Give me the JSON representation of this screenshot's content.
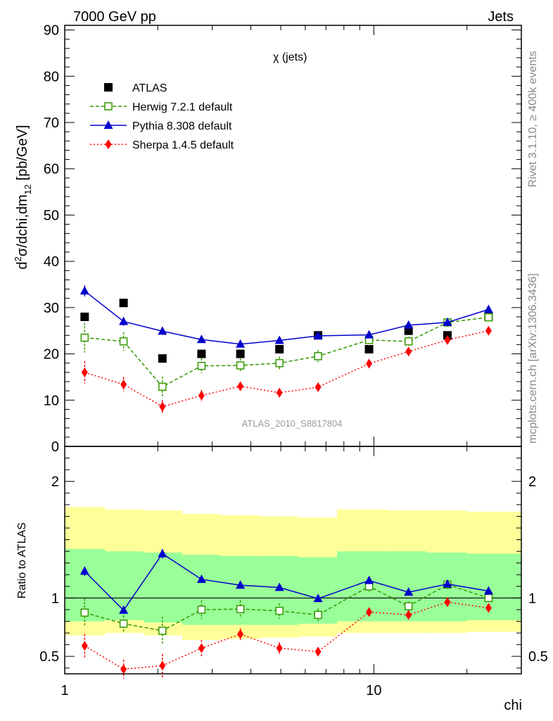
{
  "header": {
    "left_title": "7000 GeV pp",
    "right_title": "Jets"
  },
  "side_labels": {
    "rivet": "Rivet 3.1.10, ≥ 400k events",
    "mcplots": "mcplots.cern.ch [arXiv:1306.3436]"
  },
  "chart_data": [
    {
      "type": "scatter",
      "panel": "main",
      "title": "χ (jets)",
      "watermark": "ATLAS_2010_S8817804",
      "ylabel_main": "d",
      "ylabel_sup": "2",
      "ylabel_rest": "σ/dchi,dm",
      "ylabel_sub": "12",
      "ylabel_unit": " [pb/GeV]",
      "xscale": "log",
      "xlim": [
        1,
        30
      ],
      "ylim": [
        0,
        91
      ],
      "yticks": [
        0,
        10,
        20,
        30,
        40,
        50,
        60,
        70,
        80,
        90
      ],
      "x": [
        1.16,
        1.55,
        2.07,
        2.77,
        3.7,
        4.95,
        6.6,
        9.65,
        12.95,
        17.3,
        23.5
      ],
      "series": [
        {
          "name": "ATLAS",
          "color": "#000000",
          "marker": "square",
          "values": [
            28,
            31,
            19,
            20,
            20,
            21,
            24,
            21,
            25,
            24,
            28
          ]
        },
        {
          "name": "Herwig 7.2.1 default",
          "color": "#339900",
          "marker": "open-square",
          "dash": "5,3",
          "values": [
            23.5,
            22.7,
            12.9,
            17.4,
            17.5,
            18.0,
            19.5,
            23.0,
            22.7,
            26.8,
            27.9
          ],
          "errors": [
            3.2,
            2.0,
            2.2,
            1.6,
            1.5,
            1.4,
            1.3,
            1.2,
            1.0,
            0.9,
            0.8
          ]
        },
        {
          "name": "Pythia 8.308 default",
          "color": "#0000cc",
          "marker": "triangle",
          "values": [
            33.6,
            27.0,
            24.9,
            23.1,
            22.1,
            22.9,
            23.9,
            24.1,
            26.2,
            26.8,
            29.6
          ],
          "errors": [
            1.2,
            0.9,
            0.8,
            0.6,
            0.5,
            0.5,
            0.5,
            0.5,
            0.5,
            0.5,
            0.5
          ]
        },
        {
          "name": "Sherpa 1.4.5 default",
          "color": "#ff0000",
          "marker": "diamond",
          "dash": "2,3",
          "values": [
            16.0,
            13.4,
            8.6,
            11.0,
            13.0,
            11.6,
            12.8,
            17.9,
            20.5,
            23.0,
            25.0
          ],
          "errors": [
            2.4,
            1.6,
            1.4,
            1.2,
            1.0,
            1.0,
            0.9,
            0.8,
            0.7,
            0.6,
            0.6
          ]
        }
      ]
    },
    {
      "type": "scatter",
      "panel": "ratio",
      "ylabel": "Ratio to ATLAS",
      "xlabel": "chi",
      "xscale": "log",
      "xlim": [
        1,
        30
      ],
      "ylim": [
        0.35,
        2.3
      ],
      "yticks_labeled": [
        0.5,
        1,
        2
      ],
      "ytick_labels": [
        "0.5",
        "1",
        "2"
      ],
      "xtick_labels": [
        "1",
        "10"
      ],
      "bin_edges": [
        1.0,
        1.35,
        1.8,
        2.4,
        3.2,
        4.3,
        5.7,
        7.6,
        11.0,
        14.8,
        20.0,
        30.0
      ],
      "band_yellow_low": [
        0.68,
        0.7,
        0.68,
        0.64,
        0.65,
        0.66,
        0.67,
        0.7,
        0.7,
        0.7,
        0.71
      ],
      "band_yellow_high": [
        1.78,
        1.76,
        1.75,
        1.72,
        1.71,
        1.7,
        1.69,
        1.76,
        1.75,
        1.75,
        1.74
      ],
      "band_green_low": [
        0.8,
        0.81,
        0.79,
        0.77,
        0.77,
        0.77,
        0.78,
        0.8,
        0.8,
        0.8,
        0.81
      ],
      "band_green_high": [
        1.42,
        1.4,
        1.39,
        1.37,
        1.36,
        1.36,
        1.35,
        1.4,
        1.4,
        1.39,
        1.38
      ],
      "series": [
        {
          "name": "Herwig 7.2.1 default",
          "values": [
            0.875,
            0.78,
            0.72,
            0.9,
            0.905,
            0.89,
            0.855,
            1.1,
            0.93,
            1.115,
            1.0
          ],
          "errors": [
            0.12,
            0.07,
            0.12,
            0.08,
            0.075,
            0.065,
            0.055,
            0.05,
            0.04,
            0.035,
            0.03
          ]
        },
        {
          "name": "Pythia 8.308 default",
          "values": [
            1.23,
            0.895,
            1.38,
            1.16,
            1.11,
            1.09,
            0.995,
            1.15,
            1.05,
            1.12,
            1.06
          ],
          "errors": [
            0.04,
            0.03,
            0.04,
            0.03,
            0.025,
            0.025,
            0.02,
            0.02,
            0.02,
            0.02,
            0.02
          ]
        },
        {
          "name": "Sherpa 1.4.5 default",
          "values": [
            0.59,
            0.39,
            0.42,
            0.57,
            0.69,
            0.57,
            0.54,
            0.88,
            0.855,
            0.965,
            0.915
          ],
          "errors": [
            0.1,
            0.08,
            0.1,
            0.07,
            0.05,
            0.05,
            0.04,
            0.03,
            0.03,
            0.03,
            0.02
          ]
        }
      ]
    }
  ]
}
